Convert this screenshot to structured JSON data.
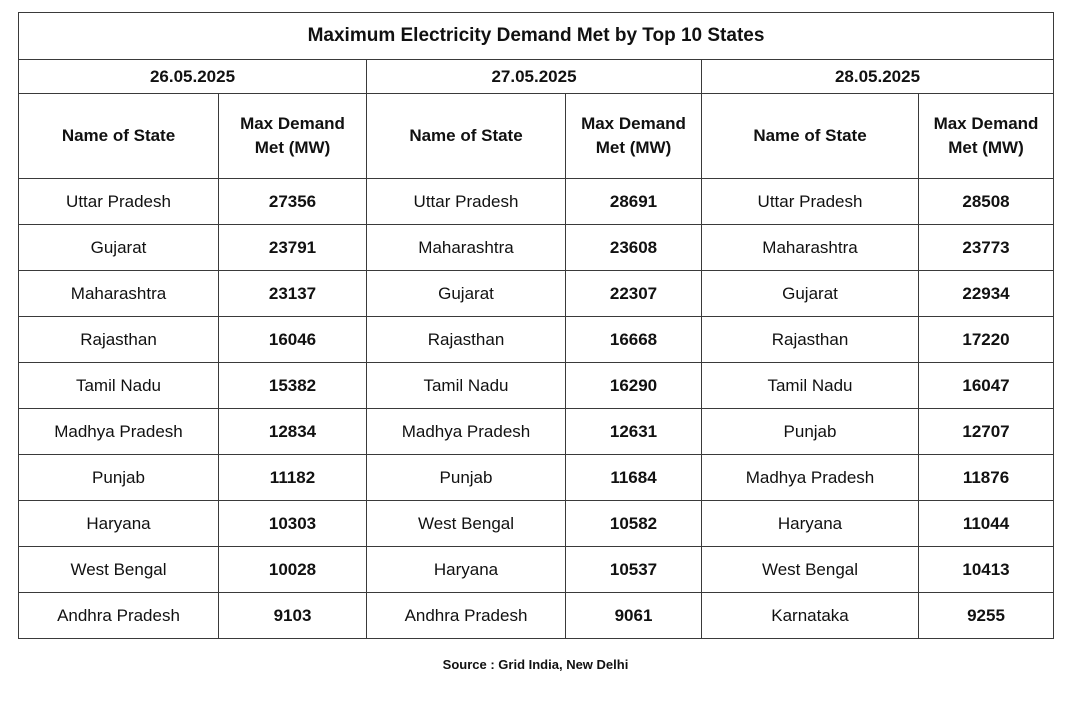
{
  "table": {
    "title": "Maximum Electricity Demand Met by Top 10 States",
    "col_state": "Name of State",
    "col_demand": "Max Demand Met (MW)",
    "dates": [
      "26.05.2025",
      "27.05.2025",
      "28.05.2025"
    ],
    "rows": [
      [
        "Uttar Pradesh",
        "27356",
        "Uttar Pradesh",
        "28691",
        "Uttar Pradesh",
        "28508"
      ],
      [
        "Gujarat",
        "23791",
        "Maharashtra",
        "23608",
        "Maharashtra",
        "23773"
      ],
      [
        "Maharashtra",
        "23137",
        "Gujarat",
        "22307",
        "Gujarat",
        "22934"
      ],
      [
        "Rajasthan",
        "16046",
        "Rajasthan",
        "16668",
        "Rajasthan",
        "17220"
      ],
      [
        "Tamil Nadu",
        "15382",
        "Tamil Nadu",
        "16290",
        "Tamil Nadu",
        "16047"
      ],
      [
        "Madhya Pradesh",
        "12834",
        "Madhya Pradesh",
        "12631",
        "Punjab",
        "12707"
      ],
      [
        "Punjab",
        "11182",
        "Punjab",
        "11684",
        "Madhya Pradesh",
        "11876"
      ],
      [
        "Haryana",
        "10303",
        "West Bengal",
        "10582",
        "Haryana",
        "11044"
      ],
      [
        "West Bengal",
        "10028",
        "Haryana",
        "10537",
        "West Bengal",
        "10413"
      ],
      [
        "Andhra Pradesh",
        "9103",
        "Andhra Pradesh",
        "9061",
        "Karnataka",
        "9255"
      ]
    ]
  },
  "source": "Source : Grid India, New Delhi"
}
